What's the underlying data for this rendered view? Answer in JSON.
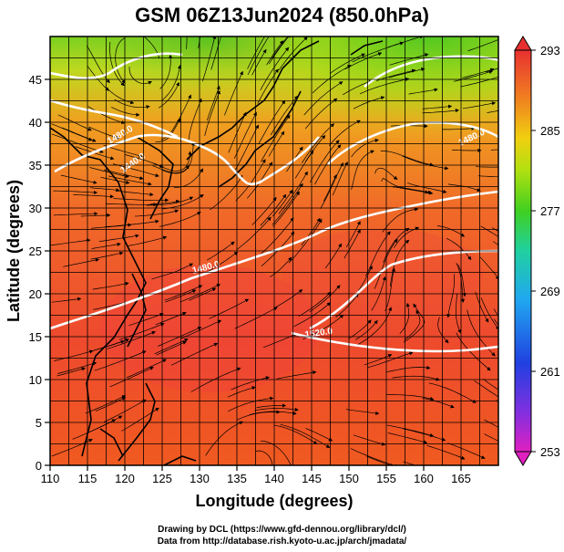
{
  "title": "GSM 06Z13Jun2024 (850.0hPa)",
  "map": {
    "xlabel": "Longitude (degrees)",
    "ylabel": "Latitude  (degrees)",
    "xticks": [
      110,
      115,
      120,
      125,
      130,
      135,
      140,
      145,
      150,
      155,
      160,
      165
    ],
    "yticks": [
      0,
      5,
      10,
      15,
      20,
      25,
      30,
      35,
      40,
      45
    ],
    "xlim": [
      110,
      170
    ],
    "ylim": [
      0,
      50
    ],
    "contour_labels": [
      "1480.0",
      "1440.0",
      "1480.0",
      "1520.0",
      "1480.0"
    ],
    "grid": true
  },
  "colorbar": {
    "ticks": [
      "293",
      "285",
      "277",
      "269",
      "261",
      "253"
    ],
    "min": 253,
    "max": 293,
    "colors": [
      "#e020c0",
      "#8040e0",
      "#2040e0",
      "#20a0f0",
      "#20d0a0",
      "#40d020",
      "#a0e010",
      "#f0e010",
      "#f0a010",
      "#f06020",
      "#e83030"
    ]
  },
  "footer": {
    "line1": "Drawing by DCL (https://www.gfd-dennou.org/library/dcl/)",
    "line2": "Data from http://database.rish.kyoto-u.ac.jp/arch/jmadata/"
  }
}
